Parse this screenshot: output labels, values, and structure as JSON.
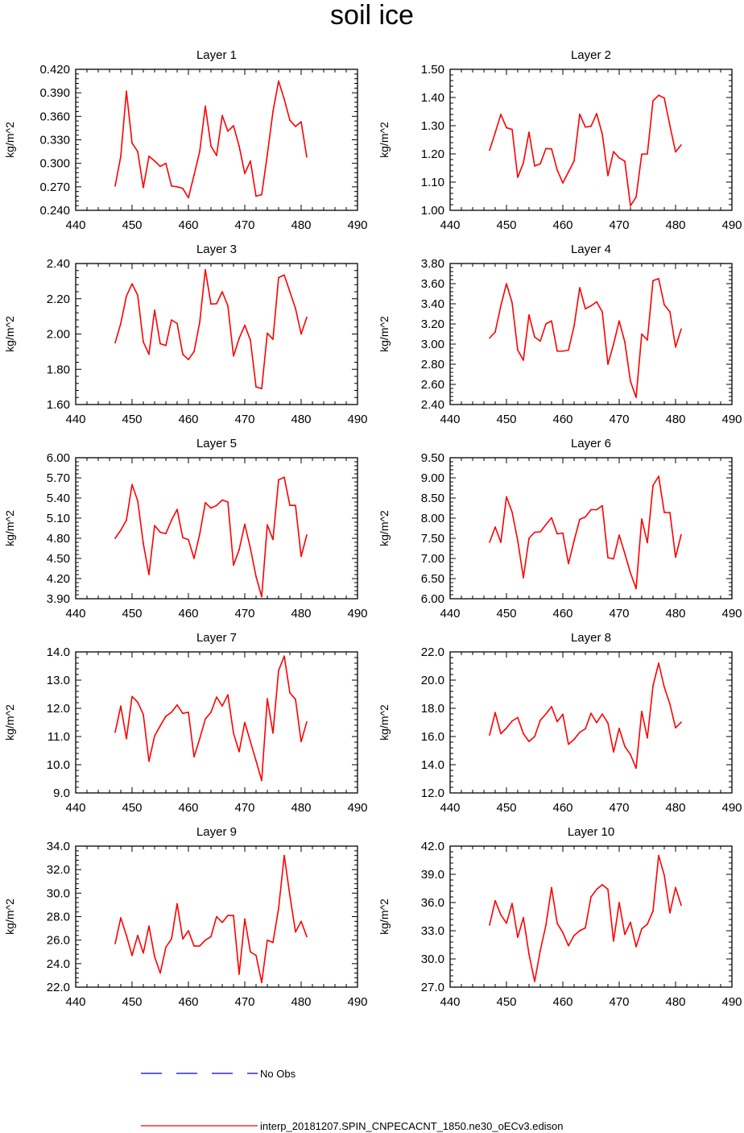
{
  "chart_data": {
    "type": "line",
    "title": "soil ice",
    "xlim": [
      440,
      490
    ],
    "x_ticks": [
      "440",
      "450",
      "460",
      "470",
      "480",
      "490"
    ],
    "x": [
      447,
      448,
      449,
      450,
      451,
      452,
      453,
      454,
      455,
      456,
      457,
      458,
      459,
      460,
      461,
      462,
      463,
      464,
      465,
      466,
      467,
      468,
      469,
      470,
      471,
      472,
      473,
      474,
      475,
      476,
      477,
      478,
      479,
      480,
      481
    ],
    "colors": {
      "model": "#ff0000",
      "obs": "#0000cc",
      "axis": "#000000"
    },
    "legend": {
      "obs_label": "No Obs",
      "model_label": "interp_20181207.SPIN_CNPECACNT_1850.ne30_oECv3.edison"
    },
    "panels": [
      {
        "title": "Layer 1",
        "ylabel": "kg/m^2",
        "ylim": [
          0.24,
          0.42
        ],
        "y_ticks": [
          "0.420",
          "0.390",
          "0.360",
          "0.330",
          "0.300",
          "0.270",
          "0.240"
        ],
        "values": [
          0.271,
          0.309,
          0.392,
          0.326,
          0.315,
          0.269,
          0.309,
          0.303,
          0.296,
          0.3,
          0.271,
          0.27,
          0.268,
          0.256,
          0.285,
          0.315,
          0.373,
          0.322,
          0.31,
          0.361,
          0.341,
          0.348,
          0.322,
          0.287,
          0.303,
          0.258,
          0.26,
          0.311,
          0.366,
          0.405,
          0.382,
          0.355,
          0.347,
          0.353,
          0.308
        ]
      },
      {
        "title": "Layer 2",
        "ylabel": "kg/m^2",
        "ylim": [
          1.0,
          1.5
        ],
        "y_ticks": [
          "1.50",
          "1.40",
          "1.30",
          "1.20",
          "1.10",
          "1.00"
        ],
        "values": [
          1.213,
          1.275,
          1.34,
          1.293,
          1.287,
          1.117,
          1.168,
          1.277,
          1.157,
          1.165,
          1.219,
          1.218,
          1.143,
          1.097,
          1.136,
          1.175,
          1.341,
          1.295,
          1.298,
          1.343,
          1.27,
          1.123,
          1.208,
          1.186,
          1.174,
          1.016,
          1.047,
          1.199,
          1.2,
          1.388,
          1.408,
          1.398,
          1.3,
          1.207,
          1.232
        ]
      },
      {
        "title": "Layer 3",
        "ylabel": "kg/m^2",
        "ylim": [
          1.6,
          2.4
        ],
        "y_ticks": [
          "2.40",
          "2.20",
          "2.00",
          "1.80",
          "1.60"
        ],
        "values": [
          1.95,
          2.06,
          2.215,
          2.285,
          2.22,
          1.955,
          1.885,
          2.135,
          1.945,
          1.935,
          2.08,
          2.06,
          1.885,
          1.855,
          1.9,
          2.065,
          2.365,
          2.17,
          2.172,
          2.24,
          2.16,
          1.875,
          1.975,
          2.05,
          1.965,
          1.7,
          1.69,
          2.005,
          1.97,
          2.32,
          2.335,
          2.24,
          2.145,
          2.0,
          2.095
        ]
      },
      {
        "title": "Layer 4",
        "ylabel": "kg/m^2",
        "ylim": [
          2.4,
          3.8
        ],
        "y_ticks": [
          "3.80",
          "3.60",
          "3.40",
          "3.20",
          "3.00",
          "2.80",
          "2.60",
          "2.40"
        ],
        "values": [
          3.06,
          3.12,
          3.38,
          3.6,
          3.41,
          2.94,
          2.84,
          3.29,
          3.07,
          3.03,
          3.2,
          3.23,
          2.93,
          2.93,
          2.94,
          3.18,
          3.56,
          3.35,
          3.38,
          3.42,
          3.32,
          2.8,
          3.0,
          3.23,
          3.02,
          2.63,
          2.47,
          3.1,
          3.04,
          3.63,
          3.65,
          3.39,
          3.32,
          2.97,
          3.15
        ]
      },
      {
        "title": "Layer 5",
        "ylabel": "kg/m^2",
        "ylim": [
          3.9,
          6.0
        ],
        "y_ticks": [
          "6.00",
          "5.70",
          "5.40",
          "5.10",
          "4.80",
          "4.50",
          "4.20",
          "3.90"
        ],
        "values": [
          4.8,
          4.92,
          5.07,
          5.6,
          5.36,
          4.72,
          4.26,
          4.99,
          4.89,
          4.87,
          5.07,
          5.23,
          4.81,
          4.78,
          4.5,
          4.86,
          5.33,
          5.25,
          5.29,
          5.37,
          5.34,
          4.4,
          4.63,
          5.01,
          4.65,
          4.23,
          3.93,
          5.0,
          4.78,
          5.67,
          5.71,
          5.29,
          5.29,
          4.53,
          4.85
        ]
      },
      {
        "title": "Layer 6",
        "ylabel": "kg/m^2",
        "ylim": [
          6.0,
          9.5
        ],
        "y_ticks": [
          "9.50",
          "9.00",
          "8.50",
          "8.00",
          "7.50",
          "7.00",
          "6.50",
          "6.00"
        ],
        "values": [
          7.4,
          7.78,
          7.4,
          8.53,
          8.15,
          7.44,
          6.52,
          7.5,
          7.65,
          7.66,
          7.84,
          8.01,
          7.61,
          7.63,
          6.87,
          7.44,
          7.97,
          8.03,
          8.21,
          8.21,
          8.31,
          7.02,
          6.99,
          7.58,
          7.12,
          6.64,
          6.25,
          7.98,
          7.39,
          8.81,
          9.04,
          8.14,
          8.14,
          7.03,
          7.59
        ]
      },
      {
        "title": "Layer 7",
        "ylabel": "kg/m^2",
        "ylim": [
          9.0,
          14.0
        ],
        "y_ticks": [
          "14.0",
          "13.0",
          "12.0",
          "11.0",
          "10.0",
          "9.0"
        ],
        "values": [
          11.15,
          12.08,
          10.92,
          12.42,
          12.22,
          11.78,
          10.12,
          11.02,
          11.38,
          11.72,
          11.86,
          12.12,
          11.82,
          11.86,
          10.28,
          10.92,
          11.62,
          11.86,
          12.4,
          12.08,
          12.48,
          11.12,
          10.46,
          11.5,
          10.82,
          10.14,
          9.44,
          12.34,
          11.12,
          13.34,
          13.85,
          12.55,
          12.32,
          10.82,
          11.52
        ]
      },
      {
        "title": "Layer 8",
        "ylabel": "kg/m^2",
        "ylim": [
          12.0,
          22.0
        ],
        "y_ticks": [
          "22.0",
          "20.0",
          "18.0",
          "16.0",
          "14.0",
          "12.0"
        ],
        "values": [
          16.1,
          17.7,
          16.2,
          16.6,
          17.1,
          17.35,
          16.2,
          15.65,
          16.0,
          17.15,
          17.6,
          18.12,
          17.05,
          17.58,
          15.45,
          15.8,
          16.3,
          16.55,
          17.65,
          16.98,
          17.6,
          16.95,
          14.9,
          16.58,
          15.3,
          14.72,
          13.75,
          17.78,
          15.9,
          19.6,
          21.2,
          19.5,
          18.3,
          16.62,
          17.02
        ]
      },
      {
        "title": "Layer 9",
        "ylabel": "kg/m^2",
        "ylim": [
          22.0,
          34.0
        ],
        "y_ticks": [
          "34.0",
          "32.0",
          "30.0",
          "28.0",
          "26.0",
          "24.0",
          "22.0"
        ],
        "values": [
          25.7,
          27.9,
          26.4,
          24.7,
          26.4,
          24.9,
          27.2,
          24.6,
          23.2,
          25.4,
          26.1,
          29.1,
          26.1,
          26.8,
          25.5,
          25.5,
          26.0,
          26.3,
          28.0,
          27.5,
          28.1,
          28.1,
          23.1,
          27.8,
          25.0,
          24.7,
          22.4,
          26.0,
          25.8,
          28.7,
          33.2,
          29.8,
          26.7,
          27.6,
          26.3
        ]
      },
      {
        "title": "Layer 10",
        "ylabel": "kg/m^2",
        "ylim": [
          27.0,
          42.0
        ],
        "y_ticks": [
          "42.0",
          "39.0",
          "36.0",
          "33.0",
          "30.0",
          "27.0"
        ],
        "values": [
          33.6,
          36.2,
          34.7,
          33.8,
          35.9,
          32.3,
          34.4,
          30.5,
          27.6,
          30.9,
          33.6,
          37.6,
          33.8,
          32.8,
          31.4,
          32.5,
          33.0,
          33.3,
          36.6,
          37.4,
          37.9,
          37.4,
          31.9,
          36.0,
          32.6,
          33.9,
          31.3,
          33.2,
          33.7,
          35.1,
          41.0,
          38.9,
          34.9,
          37.6,
          35.7
        ]
      }
    ]
  }
}
